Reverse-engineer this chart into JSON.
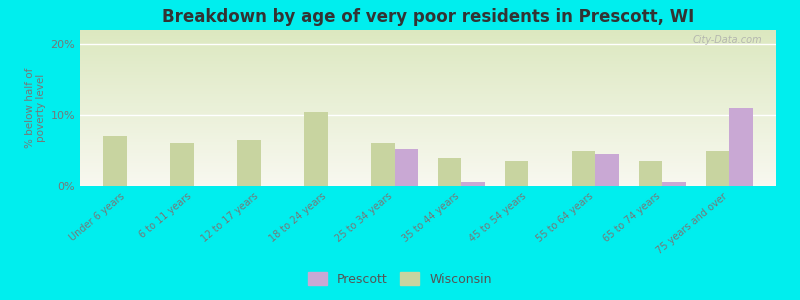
{
  "title": "Breakdown by age of very poor residents in Prescott, WI",
  "ylabel": "% below half of\npoverty level",
  "categories": [
    "Under 6 years",
    "6 to 11 years",
    "12 to 17 years",
    "18 to 24 years",
    "25 to 34 years",
    "35 to 44 years",
    "45 to 54 years",
    "55 to 64 years",
    "65 to 74 years",
    "75 years and over"
  ],
  "prescott": [
    0,
    0,
    0,
    0,
    5.2,
    0.5,
    0,
    4.5,
    0.5,
    11.0
  ],
  "wisconsin": [
    7.0,
    6.0,
    6.5,
    10.5,
    6.0,
    4.0,
    3.5,
    5.0,
    3.5,
    5.0
  ],
  "prescott_color": "#c9a8d4",
  "wisconsin_color": "#c8d4a0",
  "background_color": "#00eeee",
  "plot_bg_top": "#dce8c0",
  "plot_bg_bottom": "#f8f8f0",
  "ylim": [
    0,
    22
  ],
  "yticks": [
    0,
    10,
    20
  ],
  "ytick_labels": [
    "0%",
    "10%",
    "20%"
  ],
  "title_fontsize": 12,
  "bar_width": 0.35,
  "watermark": "City-Data.com"
}
